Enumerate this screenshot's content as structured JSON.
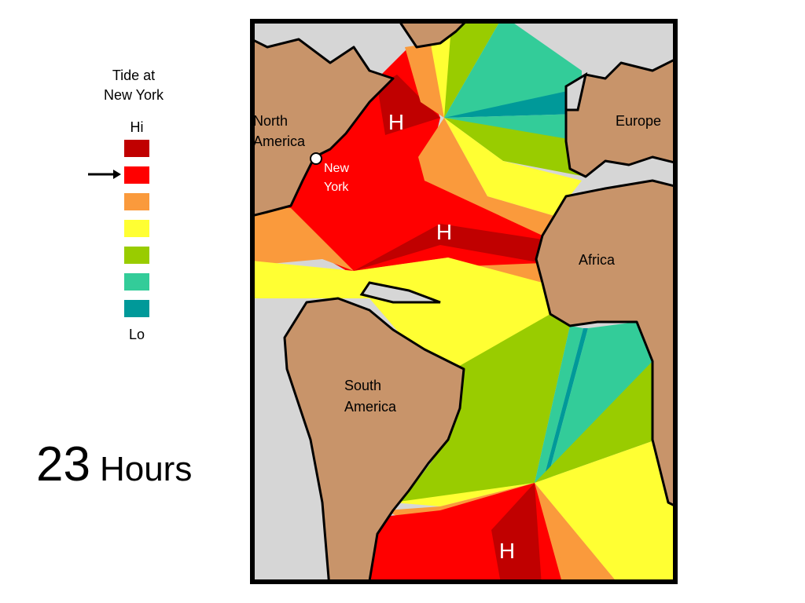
{
  "legend": {
    "title": [
      "Tide at",
      "New York"
    ],
    "top": "Hi",
    "bottom": "Lo",
    "colors": [
      "#c00000",
      "#ff0000",
      "#fa9a3c",
      "#ffff33",
      "#99cc00",
      "#33cc99",
      "#009999"
    ]
  },
  "time": {
    "hours": 23,
    "unit": "Hours"
  },
  "map": {
    "labels": {
      "north_america": [
        "North",
        "America"
      ],
      "new_york": [
        "New",
        "York"
      ],
      "europe": "Europe",
      "africa": "Africa",
      "south_america": [
        "South",
        "America"
      ]
    },
    "high_marks": [
      "H",
      "H",
      "H"
    ]
  }
}
